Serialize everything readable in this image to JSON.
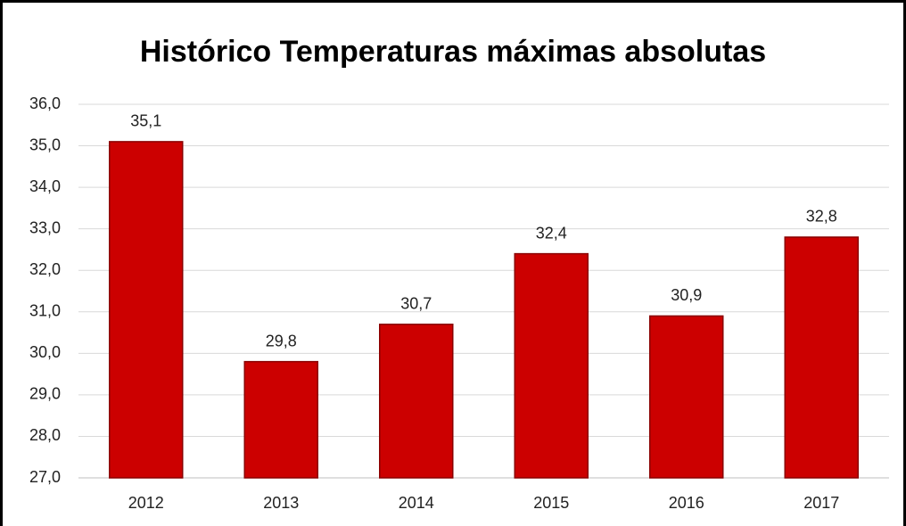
{
  "chart_data": {
    "type": "bar",
    "title": "Histórico Temperaturas máximas absolutas",
    "categories": [
      "2012",
      "2013",
      "2014",
      "2015",
      "2016",
      "2017"
    ],
    "values": [
      35.1,
      29.8,
      30.7,
      32.4,
      30.9,
      32.8
    ],
    "value_labels": [
      "35,1",
      "29,8",
      "30,7",
      "32,4",
      "30,9",
      "32,8"
    ],
    "color": "#cc0000",
    "ylim": [
      27,
      36
    ],
    "yticks": [
      {
        "value": 27,
        "label": "27,0"
      },
      {
        "value": 28,
        "label": "28,0"
      },
      {
        "value": 29,
        "label": "29,0"
      },
      {
        "value": 30,
        "label": "30,0"
      },
      {
        "value": 31,
        "label": "31,0"
      },
      {
        "value": 32,
        "label": "32,0"
      },
      {
        "value": 33,
        "label": "33,0"
      },
      {
        "value": 34,
        "label": "34,0"
      },
      {
        "value": 35,
        "label": "35,0"
      },
      {
        "value": 36,
        "label": "36,0"
      }
    ],
    "grid": true
  }
}
